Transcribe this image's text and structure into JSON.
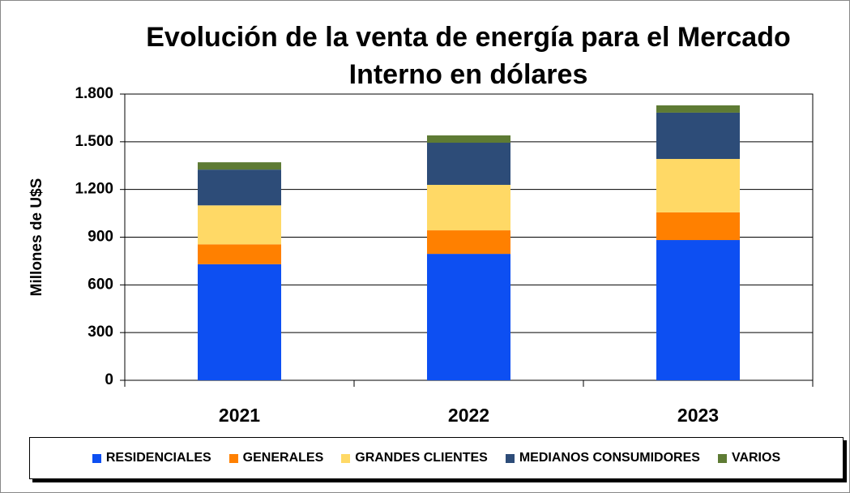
{
  "chart_data": {
    "type": "bar",
    "stacked": true,
    "title": "Evolución de la venta de energía para el Mercado Interno en dólares",
    "y_label": "Millones de U$S",
    "categories": [
      "2021",
      "2022",
      "2023"
    ],
    "series": [
      {
        "name": "RESIDENCIALES",
        "color": "#0d4ff2",
        "values": [
          730,
          795,
          882
        ]
      },
      {
        "name": "GENERALES",
        "color": "#ff8000",
        "values": [
          125,
          148,
          174
        ]
      },
      {
        "name": "GRANDES CLIENTES",
        "color": "#ffd966",
        "values": [
          245,
          286,
          336
        ]
      },
      {
        "name": "MEDIANOS CONSUMIDORES",
        "color": "#2d4c78",
        "values": [
          225,
          265,
          291
        ]
      },
      {
        "name": "VARIOS",
        "color": "#5e7b34",
        "values": [
          46,
          46,
          46
        ]
      }
    ],
    "ylim": [
      0,
      1800
    ],
    "yticks": [
      0,
      300,
      600,
      900,
      {
        "value": 1200,
        "label": "1.200"
      },
      {
        "value": 1500,
        "label": "1.500"
      },
      {
        "value": 1800,
        "label": "1.800"
      }
    ],
    "grid": true,
    "legend": "bottom"
  }
}
